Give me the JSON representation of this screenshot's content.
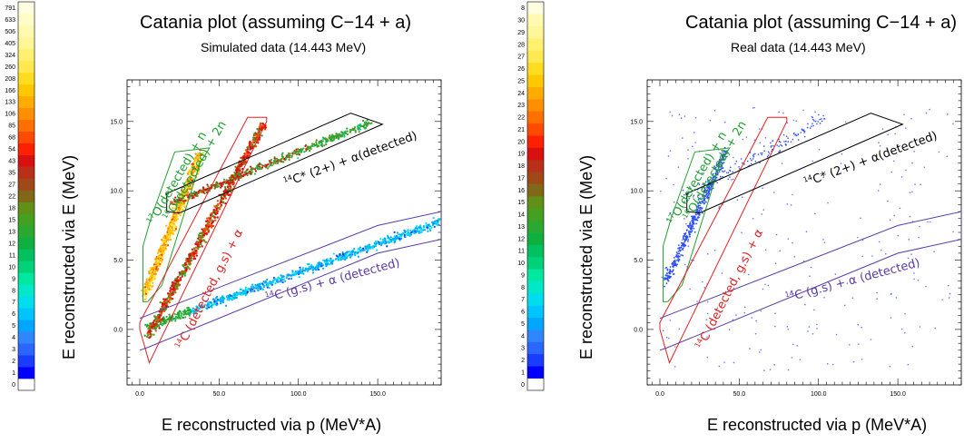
{
  "chart_data": [
    {
      "type": "heatmap",
      "title": "Catania plot (assuming C−14 + a)",
      "subtitle": "Simulated data (14.443 MeV)",
      "xlabel": "E reconstructed via p (MeV*A)",
      "ylabel": "E reconstructed via E (MeV)",
      "xlim": [
        -8,
        190
      ],
      "ylim": [
        -4,
        18
      ],
      "x_ticks": [
        "0.0",
        "50.0",
        "100.0",
        "150.0"
      ],
      "x_tick_values": [
        0,
        50,
        100,
        150
      ],
      "y_ticks": [
        "0.0",
        "5.0",
        "10.0",
        "15.0"
      ],
      "y_tick_values": [
        0,
        5,
        10,
        15
      ],
      "colorbar": [
        "0",
        "1",
        "2",
        "3",
        "4",
        "5",
        "6",
        "7",
        "8",
        "9",
        "10",
        "11",
        "12",
        "13",
        "15",
        "18",
        "22",
        "27",
        "35",
        "43",
        "54",
        "68",
        "85",
        "106",
        "133",
        "166",
        "208",
        "260",
        "324",
        "405",
        "506",
        "633",
        "791"
      ],
      "colorbar_colors": [
        "#ffffff",
        "#0000ff",
        "#1a3cff",
        "#2a66ff",
        "#2f86ff",
        "#00a6ff",
        "#00c4ff",
        "#00ddee",
        "#00e8c8",
        "#00e8a0",
        "#00d27a",
        "#00c060",
        "#10b040",
        "#2aa830",
        "#44a020",
        "#609018",
        "#806818",
        "#a04818",
        "#b8301a",
        "#d81010",
        "#ff2000",
        "#ff4a00",
        "#ff7000",
        "#ff8e00",
        "#ffac00",
        "#ffc800",
        "#ffdc20",
        "#ffe850",
        "#fff070",
        "#fff698",
        "#fffab0",
        "#fffcc8",
        "#fffde0"
      ],
      "annotations": [
        {
          "lead": "17",
          "text": "O(detected) + n",
          "color": "#22a030"
        },
        {
          "lead": "16",
          "text": "O(detected) + 2n",
          "color": "#22a030"
        },
        {
          "lead": "14",
          "text": "C (detected, g.s) + α",
          "color": "#e02020"
        },
        {
          "lead": "14",
          "text": "C* (2+) + α(detected)",
          "color": "#000000"
        },
        {
          "lead": "14",
          "text": "C (g.s) + α (detected)",
          "color": "#5a3aa8"
        }
      ]
    },
    {
      "type": "scatter",
      "title": "Catania plot (assuming C−14 + a)",
      "subtitle": "Real data (14.443 MeV)",
      "xlabel": "E reconstructed via p (MeV*A)",
      "ylabel": "E reconstructed via E (MeV)",
      "xlim": [
        -8,
        190
      ],
      "ylim": [
        -4,
        18
      ],
      "x_ticks": [
        "0.0",
        "50.0",
        "100.0",
        "150.0"
      ],
      "x_tick_values": [
        0,
        50,
        100,
        150
      ],
      "y_ticks": [
        "0.0",
        "5.0",
        "10.0",
        "15.0"
      ],
      "y_tick_values": [
        0,
        5,
        10,
        15
      ],
      "colorbar": [
        "0",
        "1",
        "2",
        "3",
        "4",
        "5",
        "6",
        "7",
        "8",
        "9",
        "10",
        "11",
        "12",
        "13",
        "14",
        "15",
        "16",
        "17",
        "18",
        "19",
        "20",
        "21",
        "22",
        "23",
        "24",
        "25",
        "26",
        "27",
        "28",
        "29",
        "30",
        "8"
      ],
      "colorbar_colors": [
        "#ffffff",
        "#0000ff",
        "#1a3cff",
        "#2a66ff",
        "#2f86ff",
        "#00a6ff",
        "#00c4ff",
        "#00ddee",
        "#00e8c8",
        "#00e8a0",
        "#00d27a",
        "#00c060",
        "#10b040",
        "#2aa830",
        "#44a020",
        "#609018",
        "#806818",
        "#a04818",
        "#b8301a",
        "#d81010",
        "#ff2000",
        "#ff4a00",
        "#ff7000",
        "#ff8e00",
        "#ffac00",
        "#ffc800",
        "#ffdc20",
        "#ffe850",
        "#fff070",
        "#fff698",
        "#fffab0",
        "#fffde0"
      ],
      "annotations": [
        {
          "lead": "17",
          "text": "O(detected) + n",
          "color": "#22a030"
        },
        {
          "lead": "16",
          "text": "O(detected) + 2n",
          "color": "#22a030"
        },
        {
          "lead": "14",
          "text": "C (detected, g.s) + α",
          "color": "#e02020"
        },
        {
          "lead": "14",
          "text": "C* (2+) + α(detected)",
          "color": "#000000"
        },
        {
          "lead": "14",
          "text": "C (g.s) + α (detected)",
          "color": "#5a3aa8"
        }
      ]
    }
  ],
  "gates": {
    "green_oxygen": {
      "color": "#22a030",
      "x": [
        5,
        14,
        38,
        44,
        22,
        7,
        2,
        2,
        5
      ],
      "y": [
        2,
        3.2,
        12,
        13.1,
        12.8,
        8,
        6,
        2,
        2
      ]
    },
    "red_c14_gs": {
      "color": "#e02020",
      "x": [
        0,
        6,
        80,
        80,
        68,
        0,
        0
      ],
      "y": [
        0,
        -2.4,
        15,
        15.3,
        15.3,
        0.5,
        0
      ]
    },
    "black_c14_excited": {
      "color": "#000000",
      "x": [
        17,
        17,
        133,
        153,
        25,
        17
      ],
      "y": [
        8.5,
        9.8,
        15.6,
        14.8,
        8.4,
        8.5
      ]
    },
    "purple_c14_gs": {
      "color": "#5a3aa8",
      "x": [
        0,
        5,
        150,
        190,
        190,
        150,
        0
      ],
      "y": [
        -1.5,
        -1.3,
        5.5,
        6.5,
        8.5,
        7.5,
        0.8
      ]
    }
  },
  "series_style": {
    "real_point_color": "#2a4cff"
  }
}
